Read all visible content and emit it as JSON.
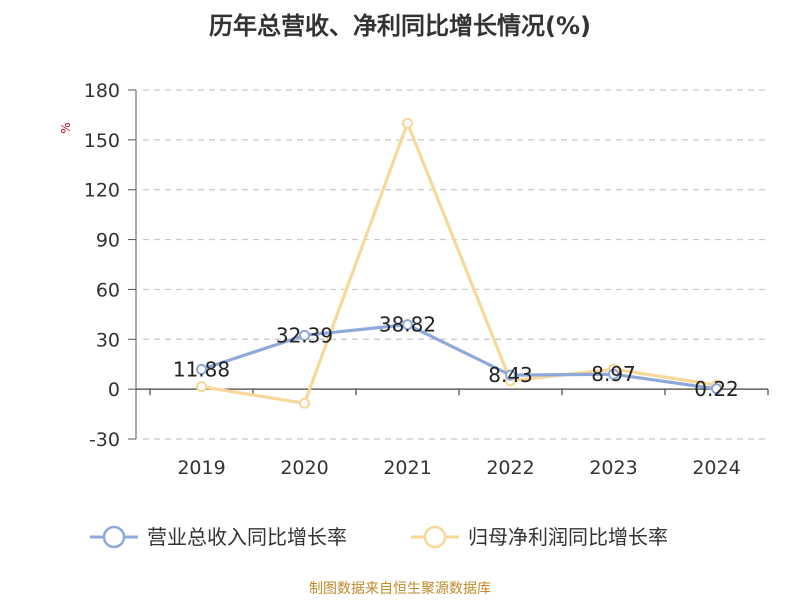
{
  "chart_data": {
    "type": "line",
    "title": "历年总营收、净利同比增长情况(%)",
    "ylabel": "%",
    "categories": [
      "2019",
      "2020",
      "2021",
      "2022",
      "2023",
      "2024"
    ],
    "ylim": [
      -30,
      180
    ],
    "yticks": [
      -30,
      0,
      30,
      60,
      90,
      120,
      150,
      180
    ],
    "grid": true,
    "legend_position": "bottom",
    "series": [
      {
        "name": "营业总收入同比增长率",
        "values": [
          11.88,
          32.39,
          38.82,
          8.43,
          8.97,
          0.22
        ],
        "labels": [
          "11.88",
          "32.39",
          "38.82",
          "8.43",
          "8.97",
          "0.22"
        ],
        "color": "#8ea9d9"
      },
      {
        "name": "归母净利润同比增长率",
        "values": [
          1.5,
          -8.5,
          160,
          5,
          12,
          2.5
        ],
        "color": "#f8d89a"
      }
    ]
  },
  "footer": "制图数据来自恒生聚源数据库"
}
